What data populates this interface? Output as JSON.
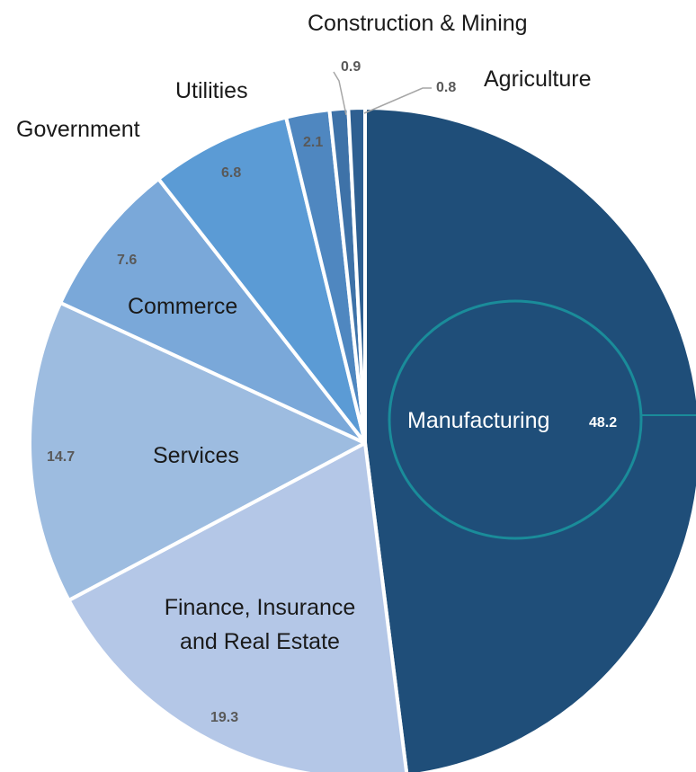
{
  "chart_data": {
    "type": "pie",
    "title": "",
    "start": "top, clockwise",
    "slices": [
      {
        "label": "Manufacturing",
        "value": 48.2,
        "value_label": "48.2",
        "color": "#1f4e79"
      },
      {
        "label": "Finance, Insurance and Real Estate",
        "value": 19.3,
        "value_label": "19.3",
        "color": "#b4c7e7"
      },
      {
        "label": "Services",
        "value": 14.7,
        "value_label": "14.7",
        "color": "#9dbce0"
      },
      {
        "label": "Commerce",
        "value": 7.6,
        "value_label": "7.6",
        "color": "#7aa8d9"
      },
      {
        "label": "Government",
        "value": 6.8,
        "value_label": "6.8",
        "color": "#5b9bd5"
      },
      {
        "label": "Utilities",
        "value": 2.1,
        "value_label": "2.1",
        "color": "#4f87c0"
      },
      {
        "label": "Construction & Mining",
        "value": 0.9,
        "value_label": "0.9",
        "color": "#3e72a8"
      },
      {
        "label": "Agriculture",
        "value": 0.8,
        "value_label": "0.8",
        "color": "#2e5f91"
      }
    ],
    "highlight_color": "#1a8c9a"
  }
}
